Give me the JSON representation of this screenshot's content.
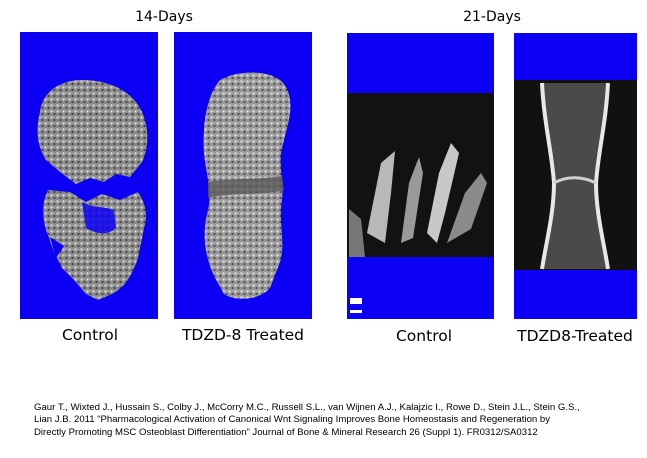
{
  "groups": {
    "day14": {
      "title": "14-Days",
      "control_label": "Control",
      "treated_label": "TDZD-8 Treated"
    },
    "day21": {
      "title": "21-Days",
      "control_label": "Control",
      "treated_label": "TDZD8-Treated"
    }
  },
  "panel_background_color": "#0c00f4",
  "citation": {
    "lines": [
      "Gaur T., Wixted J., Hussain S., Colby J., McCorry M.C., Russell S.L., van Wijnen A.J., Kalajzic I., Rowe D., Stein J.L., Stein G.S.,",
      "Lian J.B. 2011 “Pharmacological Activation of Canonical Wnt Signaling Improves Bone Homeostasis and Regeneration by",
      "Directly Promoting MSC Osteoblast Differentiation” Journal of Bone & Mineral Research 26 (Suppl 1).  FR0312/SA0312"
    ]
  }
}
